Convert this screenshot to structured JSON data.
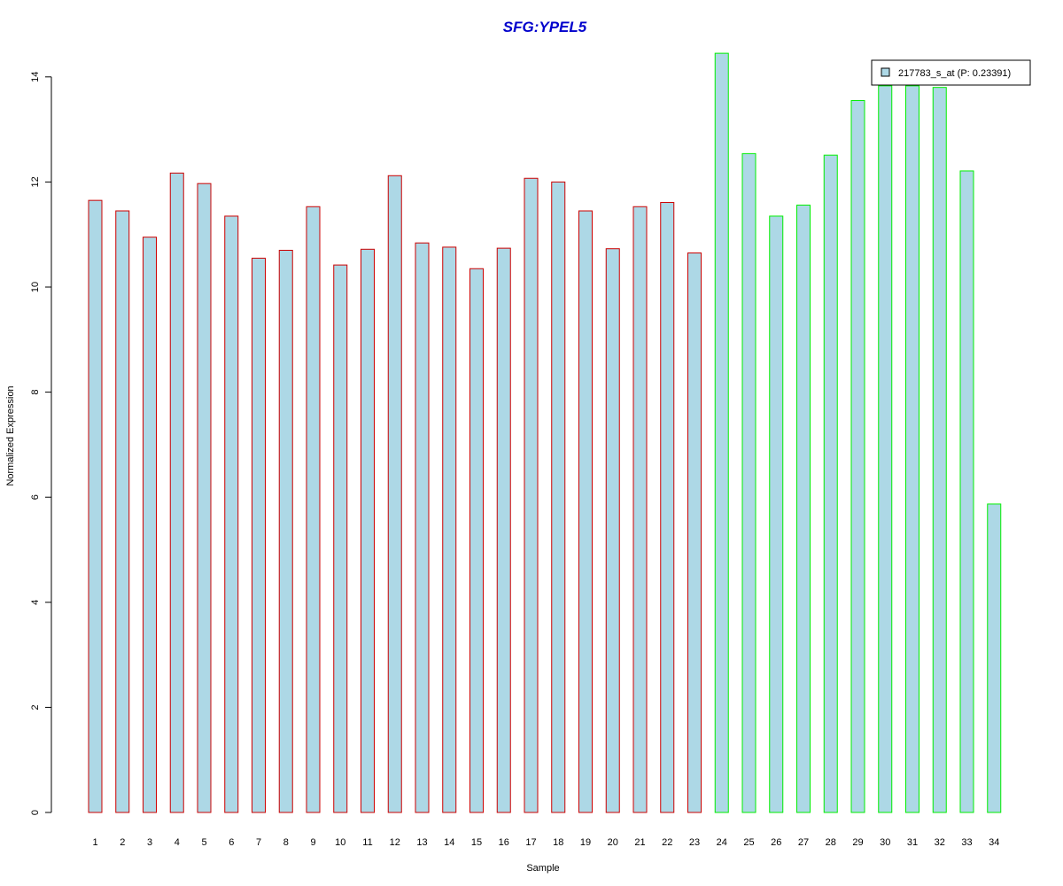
{
  "chart_data": {
    "type": "bar",
    "title": "SFG:YPEL5",
    "xlabel": "Sample",
    "ylabel": "Normalized Expression",
    "ylim": [
      0,
      14.5
    ],
    "yticks": [
      0,
      2,
      4,
      6,
      8,
      10,
      12,
      14
    ],
    "grid": false,
    "categories": [
      "1",
      "2",
      "3",
      "4",
      "5",
      "6",
      "7",
      "8",
      "9",
      "10",
      "11",
      "12",
      "13",
      "14",
      "15",
      "16",
      "17",
      "18",
      "19",
      "20",
      "21",
      "22",
      "23",
      "24",
      "25",
      "26",
      "27",
      "28",
      "29",
      "30",
      "31",
      "32",
      "33",
      "34"
    ],
    "series": [
      {
        "name": "217783_s_at (P: 0.23391)",
        "values": [
          11.65,
          11.45,
          10.95,
          12.17,
          11.97,
          11.35,
          10.55,
          10.7,
          11.53,
          10.42,
          10.72,
          12.12,
          10.84,
          10.76,
          10.35,
          10.74,
          12.07,
          12.0,
          11.45,
          10.73,
          11.53,
          11.61,
          10.65,
          14.45,
          12.54,
          11.35,
          11.56,
          12.51,
          13.55,
          13.83,
          13.83,
          13.8,
          12.21,
          5.87
        ]
      }
    ],
    "group_border_colors": [
      "#cc0000",
      "#cc0000",
      "#cc0000",
      "#cc0000",
      "#cc0000",
      "#cc0000",
      "#cc0000",
      "#cc0000",
      "#cc0000",
      "#cc0000",
      "#cc0000",
      "#cc0000",
      "#cc0000",
      "#cc0000",
      "#cc0000",
      "#cc0000",
      "#cc0000",
      "#cc0000",
      "#cc0000",
      "#cc0000",
      "#cc0000",
      "#cc0000",
      "#cc0000",
      "#00ee00",
      "#00ee00",
      "#00ee00",
      "#00ee00",
      "#00ee00",
      "#00ee00",
      "#00ee00",
      "#00ee00",
      "#00ee00",
      "#00ee00",
      "#00ee00"
    ],
    "bar_fill": "#add8e6",
    "title_color": "#0000cc",
    "legend": {
      "position": "top-right",
      "label": "217783_s_at (P: 0.23391)"
    }
  }
}
